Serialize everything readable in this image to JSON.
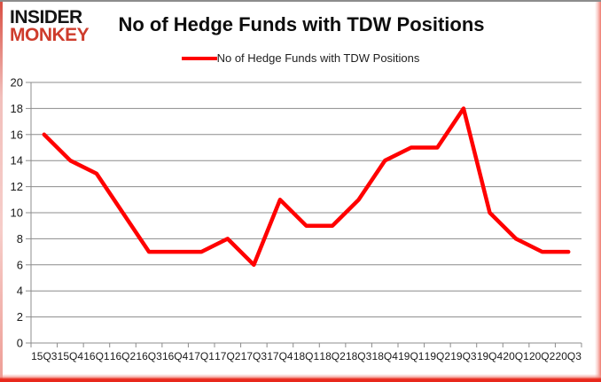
{
  "logo": {
    "line1": "INSIDER",
    "line2": "MONKEY"
  },
  "header": {
    "title": "No of Hedge Funds with TDW Positions"
  },
  "legend": {
    "label": "No of Hedge Funds with TDW Positions"
  },
  "colors": {
    "line": "#ff0000",
    "logo_monkey": "#ce3c2c",
    "grid": "#8c8c8c",
    "axis": "#8c8c8c",
    "tick_label": "#1a1a1a",
    "frame_red": "#e8291c"
  },
  "chart_data": {
    "type": "line",
    "title": "No of Hedge Funds with TDW Positions",
    "categories": [
      "15Q3",
      "15Q4",
      "16Q1",
      "16Q2",
      "16Q3",
      "16Q4",
      "17Q1",
      "17Q2",
      "17Q3",
      "17Q4",
      "18Q1",
      "18Q2",
      "18Q3",
      "18Q4",
      "19Q1",
      "19Q2",
      "19Q3",
      "19Q4",
      "20Q1",
      "20Q2",
      "20Q3"
    ],
    "series": [
      {
        "name": "No of Hedge Funds with TDW Positions",
        "color": "#ff0000",
        "values": [
          16,
          14,
          13,
          10,
          7,
          7,
          7,
          8,
          6,
          11,
          9,
          9,
          11,
          14,
          15,
          15,
          18,
          10,
          8,
          7,
          7
        ]
      }
    ],
    "xlabel": "",
    "ylabel": "",
    "ylim": [
      0,
      20
    ],
    "ytick_step": 2,
    "grid": true,
    "legend_position": "top"
  }
}
